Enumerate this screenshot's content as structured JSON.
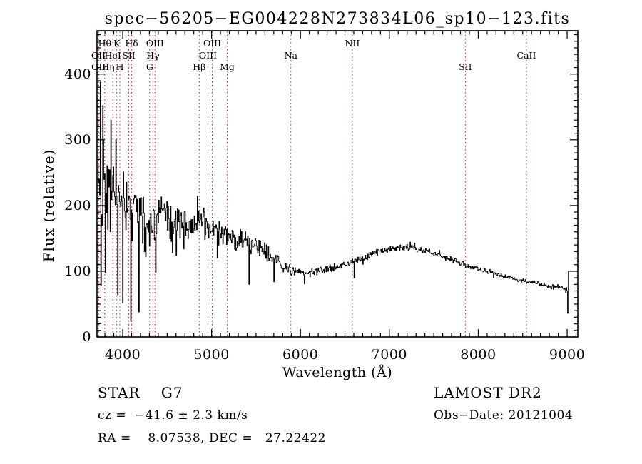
{
  "title": "spec−56205−EG004228N273834L06_sp10−123.fits",
  "colors": {
    "background": "#ffffff",
    "axis": "#000000",
    "spectrum": "#000000",
    "line_marker": "#a03030",
    "text": "#000000"
  },
  "annotations": {
    "class_label": "STAR    G7",
    "cz": "cz =  −41.6 ± 2.3 km/s",
    "ra_dec": "RA =    8.07538, DEC =   27.22422",
    "survey": "LAMOST DR2",
    "obs_date": "Obs−Date: 20121004"
  },
  "chart_data": {
    "type": "line",
    "title": "spec−56205−EG004228N273834L06_sp10−123.fits",
    "xlabel": "Wavelength (Å)",
    "ylabel": "Flux (relative)",
    "xlim": [
      3711,
      9120
    ],
    "ylim": [
      0,
      466
    ],
    "xticks": [
      4000,
      5000,
      6000,
      7000,
      8000,
      9000
    ],
    "yticks": [
      0,
      100,
      200,
      300,
      400
    ],
    "x_minor_step": 100,
    "y_minor_step": 10,
    "grid": false,
    "legend": null,
    "spectral_lines": [
      {
        "label": "Hθ",
        "wavelength": 3798,
        "row": 1
      },
      {
        "label": "K",
        "wavelength": 3933,
        "row": 1
      },
      {
        "label": "Hδ",
        "wavelength": 4101,
        "row": 1
      },
      {
        "label": "OIII",
        "wavelength": 4363,
        "row": 1
      },
      {
        "label": "OIII",
        "wavelength": 5007,
        "row": 1
      },
      {
        "label": "NII",
        "wavelength": 6583,
        "row": 1
      },
      {
        "label": "OII",
        "wavelength": 3727,
        "row": 2
      },
      {
        "label": "HeI",
        "wavelength": 3889,
        "row": 2
      },
      {
        "label": "SII",
        "wavelength": 4068,
        "row": 2
      },
      {
        "label": "Hγ",
        "wavelength": 4340,
        "row": 2
      },
      {
        "label": "OIII",
        "wavelength": 4959,
        "row": 2
      },
      {
        "label": "Na",
        "wavelength": 5892,
        "row": 2
      },
      {
        "label": "CaII",
        "wavelength": 8542,
        "row": 2
      },
      {
        "label": "OII",
        "wavelength": 3729,
        "row": 3
      },
      {
        "label": "Hη",
        "wavelength": 3835,
        "row": 3
      },
      {
        "label": "H",
        "wavelength": 3968,
        "row": 3
      },
      {
        "label": "G",
        "wavelength": 4304,
        "row": 3
      },
      {
        "label": "Hβ",
        "wavelength": 4861,
        "row": 3
      },
      {
        "label": "Mg",
        "wavelength": 5175,
        "row": 3
      },
      {
        "label": "SII",
        "wavelength": 7855,
        "row": 3
      }
    ],
    "continuum": [
      [
        3715,
        258
      ],
      [
        3740,
        252
      ],
      [
        3770,
        243
      ],
      [
        3810,
        232
      ],
      [
        3850,
        226
      ],
      [
        3900,
        220
      ],
      [
        3950,
        212
      ],
      [
        4000,
        206
      ],
      [
        4060,
        204
      ],
      [
        4120,
        198
      ],
      [
        4180,
        190
      ],
      [
        4240,
        180
      ],
      [
        4300,
        173
      ],
      [
        4360,
        179
      ],
      [
        4420,
        185
      ],
      [
        4480,
        180
      ],
      [
        4540,
        176
      ],
      [
        4620,
        176
      ],
      [
        4700,
        174
      ],
      [
        4780,
        172
      ],
      [
        4860,
        171
      ],
      [
        4940,
        168
      ],
      [
        5020,
        163
      ],
      [
        5100,
        158
      ],
      [
        5200,
        152
      ],
      [
        5300,
        148
      ],
      [
        5400,
        144
      ],
      [
        5500,
        138
      ],
      [
        5600,
        129
      ],
      [
        5700,
        117
      ],
      [
        5800,
        107
      ],
      [
        5900,
        101
      ],
      [
        6000,
        98
      ],
      [
        6100,
        98
      ],
      [
        6200,
        100
      ],
      [
        6300,
        103
      ],
      [
        6400,
        107
      ],
      [
        6500,
        111
      ],
      [
        6600,
        115
      ],
      [
        6700,
        120
      ],
      [
        6800,
        126
      ],
      [
        6900,
        131
      ],
      [
        7000,
        134
      ],
      [
        7100,
        136
      ],
      [
        7200,
        136
      ],
      [
        7300,
        134
      ],
      [
        7400,
        131
      ],
      [
        7500,
        127
      ],
      [
        7600,
        122
      ],
      [
        7700,
        117
      ],
      [
        7800,
        112
      ],
      [
        7900,
        108
      ],
      [
        8000,
        104
      ],
      [
        8100,
        100
      ],
      [
        8200,
        96
      ],
      [
        8300,
        92
      ],
      [
        8400,
        89
      ],
      [
        8500,
        86
      ],
      [
        8600,
        83
      ],
      [
        8700,
        80
      ],
      [
        8800,
        77
      ],
      [
        8900,
        75
      ],
      [
        8990,
        73
      ]
    ],
    "noise_amplitude": [
      [
        3715,
        150
      ],
      [
        3750,
        120
      ],
      [
        3790,
        95
      ],
      [
        3840,
        78
      ],
      [
        3890,
        68
      ],
      [
        3950,
        62
      ],
      [
        4000,
        58
      ],
      [
        4100,
        50
      ],
      [
        4200,
        46
      ],
      [
        4300,
        43
      ],
      [
        4400,
        40
      ],
      [
        4500,
        36
      ],
      [
        4600,
        33
      ],
      [
        4700,
        31
      ],
      [
        4800,
        29
      ],
      [
        4900,
        28
      ],
      [
        5000,
        25
      ],
      [
        5100,
        23
      ],
      [
        5200,
        21
      ],
      [
        5300,
        20
      ],
      [
        5400,
        19
      ],
      [
        5500,
        17
      ],
      [
        5600,
        15
      ],
      [
        5700,
        13
      ],
      [
        5800,
        11
      ],
      [
        5900,
        9
      ],
      [
        6000,
        8
      ],
      [
        6200,
        7
      ],
      [
        6500,
        6.5
      ],
      [
        6800,
        6
      ],
      [
        7100,
        6
      ],
      [
        7400,
        5.5
      ],
      [
        7700,
        5
      ],
      [
        8000,
        4.5
      ],
      [
        8300,
        4
      ],
      [
        8600,
        4
      ],
      [
        8990,
        4
      ]
    ],
    "spikes": [
      [
        3745,
        388
      ],
      [
        3753,
        78
      ],
      [
        3772,
        352
      ],
      [
        3800,
        98
      ],
      [
        3862,
        330
      ],
      [
        3918,
        300
      ],
      [
        3942,
        64
      ],
      [
        3996,
        52
      ],
      [
        4088,
        24
      ],
      [
        4182,
        38
      ],
      [
        4256,
        122
      ],
      [
        4372,
        98
      ],
      [
        4560,
        128
      ],
      [
        4682,
        134
      ],
      [
        4840,
        214
      ],
      [
        5060,
        120
      ],
      [
        5420,
        80
      ],
      [
        5700,
        84
      ],
      [
        6040,
        81
      ],
      [
        6600,
        90
      ]
    ],
    "edge_artifact": [
      [
        8996,
        70
      ],
      [
        9004,
        36
      ],
      [
        9013,
        100
      ],
      [
        9085,
        100
      ]
    ],
    "sample_step": 7,
    "noise_seed": 42
  }
}
